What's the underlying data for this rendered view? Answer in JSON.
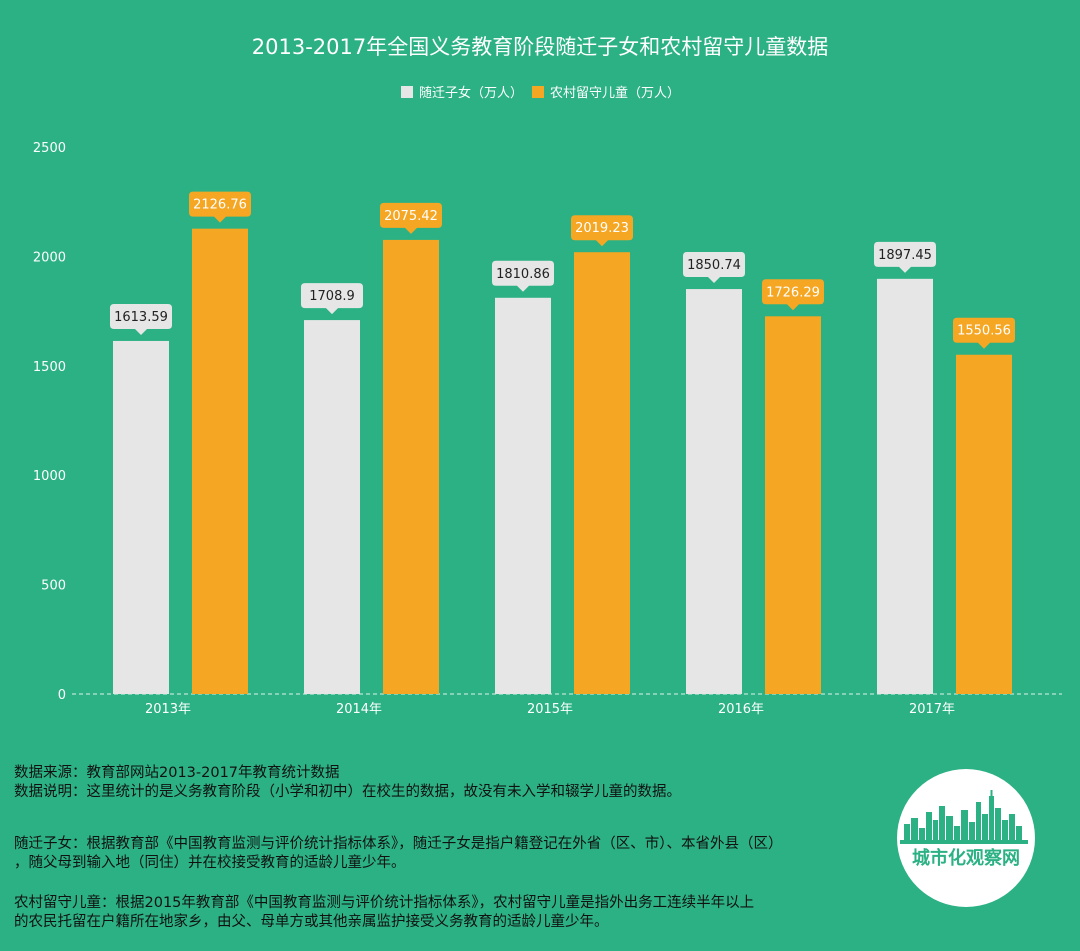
{
  "colors": {
    "background": "#2bb184",
    "series_1": "#e6e6e6",
    "series_2": "#f5a623"
  },
  "chart_data": {
    "type": "bar",
    "title": "2013-2017年全国义务教育阶段随迁子女和农村留守儿童数据",
    "categories": [
      "2013年",
      "2014年",
      "2015年",
      "2016年",
      "2017年"
    ],
    "series": [
      {
        "name": "随迁子女（万人）",
        "values": [
          1613.59,
          1708.9,
          1810.86,
          1850.74,
          1897.45
        ],
        "labels": [
          "1613.59",
          "1708.9",
          "1810.86",
          "1850.74",
          "1897.45"
        ],
        "color": "#e6e6e6"
      },
      {
        "name": "农村留守儿童（万人）",
        "values": [
          2126.76,
          2075.42,
          2019.23,
          1726.29,
          1550.56
        ],
        "labels": [
          "2126.76",
          "2075.42",
          "2019.23",
          "1726.29",
          "1550.56"
        ],
        "color": "#f5a623"
      }
    ],
    "ylim": [
      0,
      2500
    ],
    "yticks": [
      "0",
      "500",
      "1000",
      "1500",
      "2000",
      "2500"
    ],
    "legend_position": "top-center",
    "grid": false
  },
  "notes": {
    "source": "数据来源：教育部网站2013-2017年教育统计数据",
    "explanation": "数据说明：这里统计的是义务教育阶段（小学和初中）在校生的数据，故没有未入学和辍学儿童的数据。",
    "def1_line1": "随迁子女：根据教育部《中国教育监测与评价统计指标体系》，随迁子女是指户籍登记在外省（区、市）、本省外县（区）",
    "def1_line2": "，随父母到输入地（同住）并在校接受教育的适龄儿童少年。",
    "def2_line1": "农村留守儿童：根据2015年教育部《中国教育监测与评价统计指标体系》，农村留守儿童是指外出务工连续半年以上",
    "def2_line2": "的农民托留在户籍所在地家乡，由父、母单方或其他亲属监护接受义务教育的适龄儿童少年。"
  },
  "logo": {
    "text": "城市化观察网"
  }
}
